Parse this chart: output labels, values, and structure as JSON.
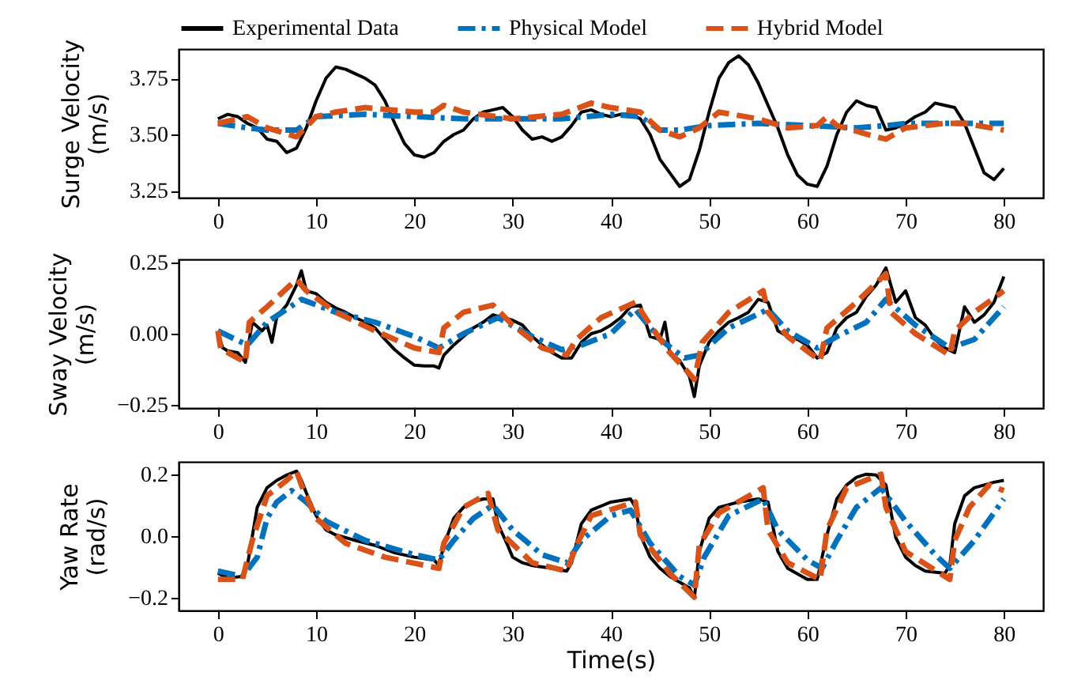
{
  "chart_data": [
    {
      "type": "line",
      "ylabel": "Surge Velocity\n(m/s)",
      "xlim": [
        -4,
        84
      ],
      "ylim": [
        3.22,
        3.88
      ],
      "xticks": [
        0,
        10,
        20,
        30,
        40,
        50,
        60,
        70,
        80
      ],
      "yticks": [
        {
          "value": 3.25,
          "label": "3.25"
        },
        {
          "value": 3.5,
          "label": "3.50"
        },
        {
          "value": 3.75,
          "label": "3.75"
        }
      ],
      "legend": "top",
      "series": [
        {
          "name": "Experimental Data",
          "color": "#000000",
          "line_style": "solid",
          "x": [
            0,
            1,
            2,
            3,
            4,
            5,
            6,
            7,
            8,
            9,
            10,
            11,
            12,
            13,
            14,
            15,
            16,
            17,
            18,
            19,
            20,
            21,
            22,
            23,
            24,
            25,
            26,
            27,
            28,
            29,
            30,
            31,
            32,
            33,
            34,
            35,
            36,
            37,
            38,
            39,
            40,
            41,
            42,
            43,
            44,
            45,
            46,
            47,
            48,
            49,
            50,
            51,
            52,
            53,
            54,
            55,
            56,
            57,
            58,
            59,
            60,
            61,
            62,
            63,
            64,
            65,
            66,
            67,
            68,
            69,
            70,
            71,
            72,
            73,
            74,
            75,
            76,
            77,
            78,
            79,
            80
          ],
          "values": [
            3.57,
            3.59,
            3.58,
            3.55,
            3.53,
            3.48,
            3.47,
            3.42,
            3.44,
            3.53,
            3.65,
            3.75,
            3.8,
            3.79,
            3.77,
            3.75,
            3.72,
            3.65,
            3.55,
            3.46,
            3.41,
            3.4,
            3.42,
            3.47,
            3.5,
            3.52,
            3.57,
            3.6,
            3.61,
            3.62,
            3.58,
            3.52,
            3.48,
            3.49,
            3.47,
            3.49,
            3.54,
            3.6,
            3.61,
            3.59,
            3.58,
            3.59,
            3.59,
            3.57,
            3.5,
            3.39,
            3.33,
            3.27,
            3.3,
            3.43,
            3.6,
            3.75,
            3.82,
            3.85,
            3.81,
            3.73,
            3.63,
            3.53,
            3.41,
            3.32,
            3.28,
            3.27,
            3.36,
            3.5,
            3.6,
            3.65,
            3.63,
            3.62,
            3.52,
            3.53,
            3.55,
            3.58,
            3.6,
            3.64,
            3.63,
            3.62,
            3.55,
            3.44,
            3.33,
            3.3,
            3.35
          ]
        },
        {
          "name": "Physical Model",
          "color": "#0072bd",
          "line_style": "dashdot",
          "x": [
            0,
            3,
            5,
            8,
            10,
            15,
            20,
            25,
            30,
            35,
            40,
            43,
            45,
            47,
            50,
            55,
            60,
            65,
            68,
            70,
            75,
            80
          ],
          "values": [
            3.55,
            3.53,
            3.52,
            3.52,
            3.58,
            3.59,
            3.58,
            3.57,
            3.57,
            3.57,
            3.59,
            3.58,
            3.52,
            3.52,
            3.54,
            3.55,
            3.54,
            3.53,
            3.54,
            3.55,
            3.55,
            3.55
          ]
        },
        {
          "name": "Hybrid Model",
          "color": "#d95319",
          "line_style": "dashed",
          "x": [
            0,
            3,
            5,
            8,
            10,
            12,
            15,
            20,
            22,
            23,
            25,
            30,
            35,
            38,
            40,
            43,
            45,
            47,
            49,
            51,
            55,
            58,
            61,
            62,
            63,
            67,
            68,
            70,
            74,
            76,
            80
          ],
          "values": [
            3.55,
            3.58,
            3.53,
            3.49,
            3.58,
            3.6,
            3.62,
            3.6,
            3.6,
            3.63,
            3.6,
            3.57,
            3.59,
            3.64,
            3.62,
            3.6,
            3.52,
            3.49,
            3.53,
            3.6,
            3.57,
            3.53,
            3.54,
            3.58,
            3.54,
            3.49,
            3.48,
            3.53,
            3.55,
            3.55,
            3.52
          ]
        }
      ]
    },
    {
      "type": "line",
      "ylabel": "Sway Velocity\n(m/s)",
      "xlim": [
        -4,
        84
      ],
      "ylim": [
        -0.26,
        0.26
      ],
      "xticks": [
        0,
        10,
        20,
        30,
        40,
        50,
        60,
        70,
        80
      ],
      "yticks": [
        {
          "value": -0.25,
          "label": "−0.25"
        },
        {
          "value": 0,
          "label": "0.00"
        },
        {
          "value": 0.25,
          "label": "0.25"
        }
      ],
      "series": [
        {
          "color": "#000000",
          "line_style": "solid",
          "x": [
            0,
            0.5,
            1,
            2,
            2.8,
            3.5,
            4.5,
            5,
            5.5,
            6,
            7,
            8,
            8.5,
            9,
            10,
            11,
            12,
            13,
            14,
            15,
            16,
            17,
            18,
            19,
            20,
            21,
            22,
            22.5,
            23,
            24,
            25,
            26,
            27,
            28,
            29,
            30,
            31,
            32,
            33,
            34,
            35,
            36,
            37,
            38,
            39,
            40,
            41,
            42,
            43,
            44,
            45,
            45.5,
            46,
            47,
            48,
            48.5,
            49,
            50,
            51,
            52,
            53,
            54,
            55,
            56,
            57,
            58,
            59,
            60,
            61,
            62,
            63,
            64,
            65,
            66,
            67,
            68,
            69,
            70,
            71,
            72,
            73,
            74,
            75,
            76,
            77,
            78,
            79,
            80
          ],
          "values": [
            0,
            -0.05,
            -0.06,
            -0.066,
            -0.1,
            0.04,
            0.01,
            0.03,
            -0.03,
            0.06,
            0.1,
            0.17,
            0.22,
            0.15,
            0.14,
            0.11,
            0.09,
            0.075,
            0.056,
            0.04,
            0.02,
            -0.02,
            -0.056,
            -0.085,
            -0.11,
            -0.113,
            -0.113,
            -0.12,
            -0.075,
            -0.04,
            -0.01,
            0.02,
            0.04,
            0.066,
            0.056,
            0.047,
            0.03,
            -0.01,
            -0.04,
            -0.066,
            -0.085,
            -0.085,
            -0.03,
            0,
            0.01,
            0.03,
            0.056,
            0.094,
            0.1,
            -0.01,
            -0.02,
            0.04,
            -0.066,
            -0.094,
            -0.15,
            -0.22,
            -0.113,
            -0.03,
            0.01,
            0.04,
            0.056,
            0.075,
            0.12,
            0.11,
            0.01,
            -0.01,
            -0.02,
            -0.04,
            -0.085,
            -0.066,
            0.02,
            0.056,
            0.075,
            0.13,
            0.17,
            0.23,
            0.11,
            0.15,
            0.056,
            0.03,
            -0.02,
            -0.05,
            -0.066,
            0.094,
            0.04,
            0.066,
            0.11,
            0.2
          ]
        },
        {
          "color": "#0072bd",
          "line_style": "dashdot",
          "x": [
            0,
            3,
            5,
            8.5,
            12,
            16,
            20,
            22.5,
            25,
            28.5,
            32,
            35,
            37,
            40,
            42.5,
            45,
            47.5,
            49,
            52,
            56,
            58,
            61,
            63,
            66,
            68,
            71,
            74.5,
            77,
            80
          ],
          "values": [
            0.01,
            -0.04,
            0.04,
            0.12,
            0.075,
            0.04,
            -0.01,
            -0.05,
            0,
            0.056,
            -0.01,
            -0.056,
            -0.04,
            0,
            0.085,
            -0.02,
            -0.085,
            -0.075,
            0.02,
            0.085,
            0.01,
            -0.05,
            -0.01,
            0.04,
            0.12,
            0.03,
            -0.05,
            -0.02,
            0.094
          ]
        },
        {
          "color": "#d95319",
          "line_style": "dashed",
          "x": [
            0,
            0.3,
            1,
            2.8,
            3.2,
            5,
            8,
            9,
            12,
            16,
            20,
            22.5,
            23,
            25,
            28,
            30,
            33,
            35.5,
            36.5,
            39,
            42.5,
            44,
            46,
            48,
            48.5,
            49.3,
            52,
            55.5,
            56,
            58,
            61.3,
            62,
            65,
            68,
            68.5,
            71,
            74.5,
            75,
            77,
            80
          ],
          "values": [
            0.01,
            -0.056,
            -0.066,
            -0.1,
            0.04,
            0.094,
            0.19,
            0.15,
            0.075,
            0.01,
            -0.05,
            -0.066,
            0.02,
            0.075,
            0.1,
            0.03,
            -0.05,
            -0.075,
            -0.02,
            0.056,
            0.11,
            0.03,
            -0.066,
            -0.14,
            -0.16,
            -0.03,
            0.075,
            0.15,
            0.075,
            -0.01,
            -0.094,
            0.02,
            0.11,
            0.21,
            0.075,
            0,
            -0.075,
            0.01,
            0.075,
            0.15
          ]
        }
      ]
    },
    {
      "type": "line",
      "ylabel": "Yaw Rate\n(rad/s)",
      "xlabel": "Time(s)",
      "xlim": [
        -4,
        84
      ],
      "ylim": [
        -0.24,
        0.24
      ],
      "xticks": [
        0,
        10,
        20,
        30,
        40,
        50,
        60,
        70,
        80
      ],
      "yticks": [
        {
          "value": -0.2,
          "label": "−0.2"
        },
        {
          "value": 0,
          "label": "0.0"
        },
        {
          "value": 0.2,
          "label": "0.2"
        }
      ],
      "series": [
        {
          "color": "#000000",
          "line_style": "solid",
          "x": [
            0,
            1,
            2.5,
            3,
            4,
            5,
            6,
            7,
            8,
            8.5,
            9,
            10,
            11,
            12,
            14,
            16,
            18,
            20,
            22,
            22.5,
            23,
            24,
            25,
            26,
            27,
            28,
            28.5,
            29.5,
            30,
            31,
            32,
            34,
            35.5,
            36,
            37,
            38,
            40,
            42,
            42.5,
            43,
            44,
            45,
            46,
            47,
            48,
            48.5,
            49,
            50,
            51,
            53,
            55,
            56,
            57,
            58,
            60,
            61,
            62,
            63,
            64,
            65,
            66,
            67,
            68,
            69,
            70,
            71,
            72,
            74,
            74.5,
            75,
            76,
            77,
            78,
            79,
            80
          ],
          "values": [
            -0.12,
            -0.135,
            -0.13,
            -0.095,
            0.093,
            0.156,
            0.18,
            0.197,
            0.21,
            0.18,
            0.14,
            0.066,
            0.02,
            0.004,
            -0.014,
            -0.03,
            -0.054,
            -0.068,
            -0.077,
            -0.095,
            -0.03,
            0.057,
            0.093,
            0.11,
            0.12,
            0.12,
            0.04,
            -0.03,
            -0.068,
            -0.086,
            -0.095,
            -0.104,
            -0.113,
            -0.086,
            0.04,
            0.084,
            0.11,
            0.12,
            0.093,
            0.004,
            -0.068,
            -0.104,
            -0.13,
            -0.149,
            -0.167,
            -0.2,
            -0.05,
            0.057,
            0.093,
            0.11,
            0.12,
            0.11,
            -0.05,
            -0.104,
            -0.14,
            -0.14,
            0.004,
            0.12,
            0.165,
            0.19,
            0.2,
            0.197,
            0.165,
            -0.005,
            -0.068,
            -0.095,
            -0.113,
            -0.12,
            -0.095,
            0.04,
            0.13,
            0.156,
            0.165,
            0.174,
            0.18
          ]
        },
        {
          "color": "#0072bd",
          "line_style": "dashdot",
          "x": [
            0,
            2.5,
            4,
            5,
            6,
            7.5,
            9,
            11,
            15,
            20,
            22.5,
            24,
            26,
            28,
            30,
            33,
            35.5,
            37,
            40,
            42,
            44,
            47,
            48.5,
            49.5,
            52,
            55.5,
            57,
            60,
            61.5,
            63,
            65,
            67.5,
            70,
            73,
            74.5,
            77,
            80
          ],
          "values": [
            -0.113,
            -0.13,
            -0.068,
            0.057,
            0.11,
            0.147,
            0.11,
            0.048,
            -0.014,
            -0.06,
            -0.077,
            -0.014,
            0.057,
            0.1,
            0.02,
            -0.06,
            -0.086,
            -0.014,
            0.066,
            0.084,
            -0.023,
            -0.13,
            -0.158,
            -0.068,
            0.066,
            0.12,
            0.02,
            -0.077,
            -0.104,
            -0.014,
            0.093,
            0.156,
            0.048,
            -0.06,
            -0.104,
            -0.014,
            0.12
          ]
        },
        {
          "color": "#d95319",
          "line_style": "dashed",
          "x": [
            0,
            2.5,
            3.5,
            5,
            7,
            8,
            8.5,
            10,
            13,
            17,
            22.5,
            23,
            25,
            27.5,
            28.5,
            32,
            35.5,
            36.5,
            38,
            42.5,
            43,
            46,
            48.5,
            49,
            51,
            55.5,
            56,
            58,
            61.3,
            62,
            64,
            67.5,
            68,
            70,
            74.5,
            75,
            76.5,
            78.5,
            80
          ],
          "values": [
            -0.14,
            -0.14,
            -0.014,
            0.13,
            0.18,
            0.21,
            0.165,
            0.057,
            -0.023,
            -0.068,
            -0.104,
            -0.023,
            0.093,
            0.138,
            0.02,
            -0.086,
            -0.113,
            -0.03,
            0.066,
            0.11,
            0.004,
            -0.12,
            -0.197,
            -0.03,
            0.075,
            0.156,
            0.02,
            -0.086,
            -0.14,
            0.02,
            0.156,
            0.2,
            0.093,
            -0.05,
            -0.14,
            -0.014,
            0.093,
            0.165,
            0.147
          ]
        }
      ]
    }
  ]
}
